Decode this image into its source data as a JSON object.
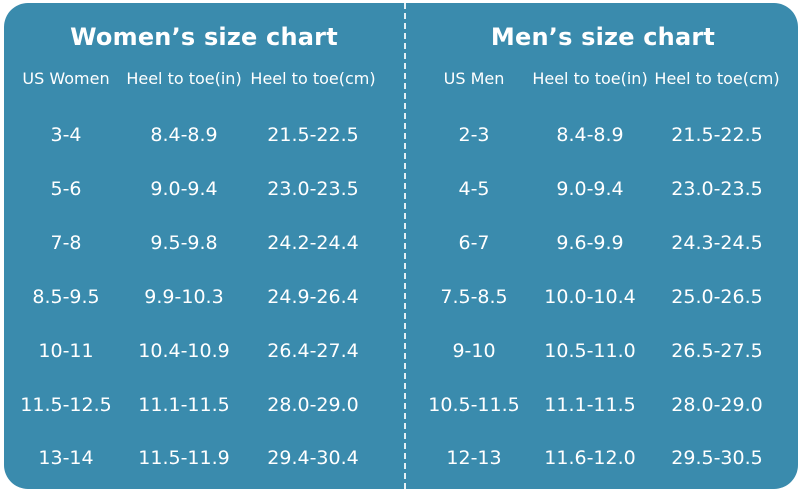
{
  "women": {
    "title": "Women’s  size chart",
    "headers": [
      "US Women",
      "Heel to toe(in)",
      "Heel to toe(cm)"
    ],
    "rows": [
      [
        "3-4",
        "8.4-8.9",
        "21.5-22.5"
      ],
      [
        "5-6",
        "9.0-9.4",
        "23.0-23.5"
      ],
      [
        "7-8",
        "9.5-9.8",
        "24.2-24.4"
      ],
      [
        "8.5-9.5",
        "9.9-10.3",
        "24.9-26.4"
      ],
      [
        "10-11",
        "10.4-10.9",
        "26.4-27.4"
      ],
      [
        "11.5-12.5",
        "11.1-11.5",
        "28.0-29.0"
      ],
      [
        "13-14",
        "11.5-11.9",
        "29.4-30.4"
      ]
    ]
  },
  "men": {
    "title": "Men’s  size chart",
    "headers": [
      "US Men",
      "Heel to toe(in)",
      "Heel to toe(cm)"
    ],
    "rows": [
      [
        "2-3",
        "8.4-8.9",
        "21.5-22.5"
      ],
      [
        "4-5",
        "9.0-9.4",
        "23.0-23.5"
      ],
      [
        "6-7",
        "9.6-9.9",
        "24.3-24.5"
      ],
      [
        "7.5-8.5",
        "10.0-10.4",
        "25.0-26.5"
      ],
      [
        "9-10",
        "10.5-11.0",
        "26.5-27.5"
      ],
      [
        "10.5-11.5",
        "11.1-11.5",
        "28.0-29.0"
      ],
      [
        "12-13",
        "11.6-12.0",
        "29.5-30.5"
      ]
    ]
  },
  "colors": {
    "background": "#3a8bad",
    "text": "#ffffff",
    "divider": "#e6f1f6"
  }
}
